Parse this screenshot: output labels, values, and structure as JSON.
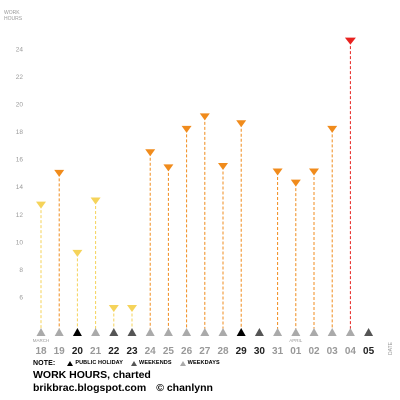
{
  "chart_data": {
    "type": "lollipop",
    "title": "WORK HOURS, charted",
    "ylabel": "WORK HOURS",
    "xlabel": "DATE",
    "ylim": [
      4,
      25.5
    ],
    "yticks": [
      6,
      8,
      10,
      12,
      14,
      16,
      18,
      20,
      22,
      24
    ],
    "grid": false,
    "categories": [
      "18",
      "19",
      "20",
      "21",
      "22",
      "23",
      "24",
      "25",
      "26",
      "27",
      "28",
      "29",
      "30",
      "31",
      "01",
      "02",
      "03",
      "04",
      "05"
    ],
    "month_labels": [
      {
        "index": 0,
        "text": "MARCH"
      },
      {
        "index": 14,
        "text": "APRIL"
      }
    ],
    "day_type": [
      "weekday",
      "weekday",
      "public_holiday",
      "weekday",
      "weekend",
      "weekend",
      "weekday",
      "weekday",
      "weekday",
      "weekday",
      "weekday",
      "public_holiday",
      "weekend",
      "weekday",
      "weekday",
      "weekday",
      "weekday",
      "weekday",
      "weekend"
    ],
    "values": [
      12.7,
      15.0,
      9.2,
      13.0,
      5.2,
      5.2,
      16.5,
      15.4,
      18.2,
      19.1,
      15.5,
      18.6,
      null,
      15.1,
      14.3,
      15.1,
      18.2,
      24.6,
      null
    ],
    "highlight_index": 17,
    "colors": {
      "low": "#f5d35a",
      "mid": "#f08b1c",
      "max": "#e8221f",
      "label_normal": "#999999",
      "label_emph": "#222222",
      "marker_weekday": "#aaaaaa",
      "marker_weekend": "#555555",
      "marker_holiday": "#000000"
    }
  },
  "note": {
    "label": "NOTE:",
    "items": [
      "PUBLIC HOLIDAY",
      "WEEKENDS",
      "WEEKDAYS"
    ]
  },
  "footer": {
    "blog": "brikbrac.blogspot.com",
    "credit": "© chanlynn"
  }
}
